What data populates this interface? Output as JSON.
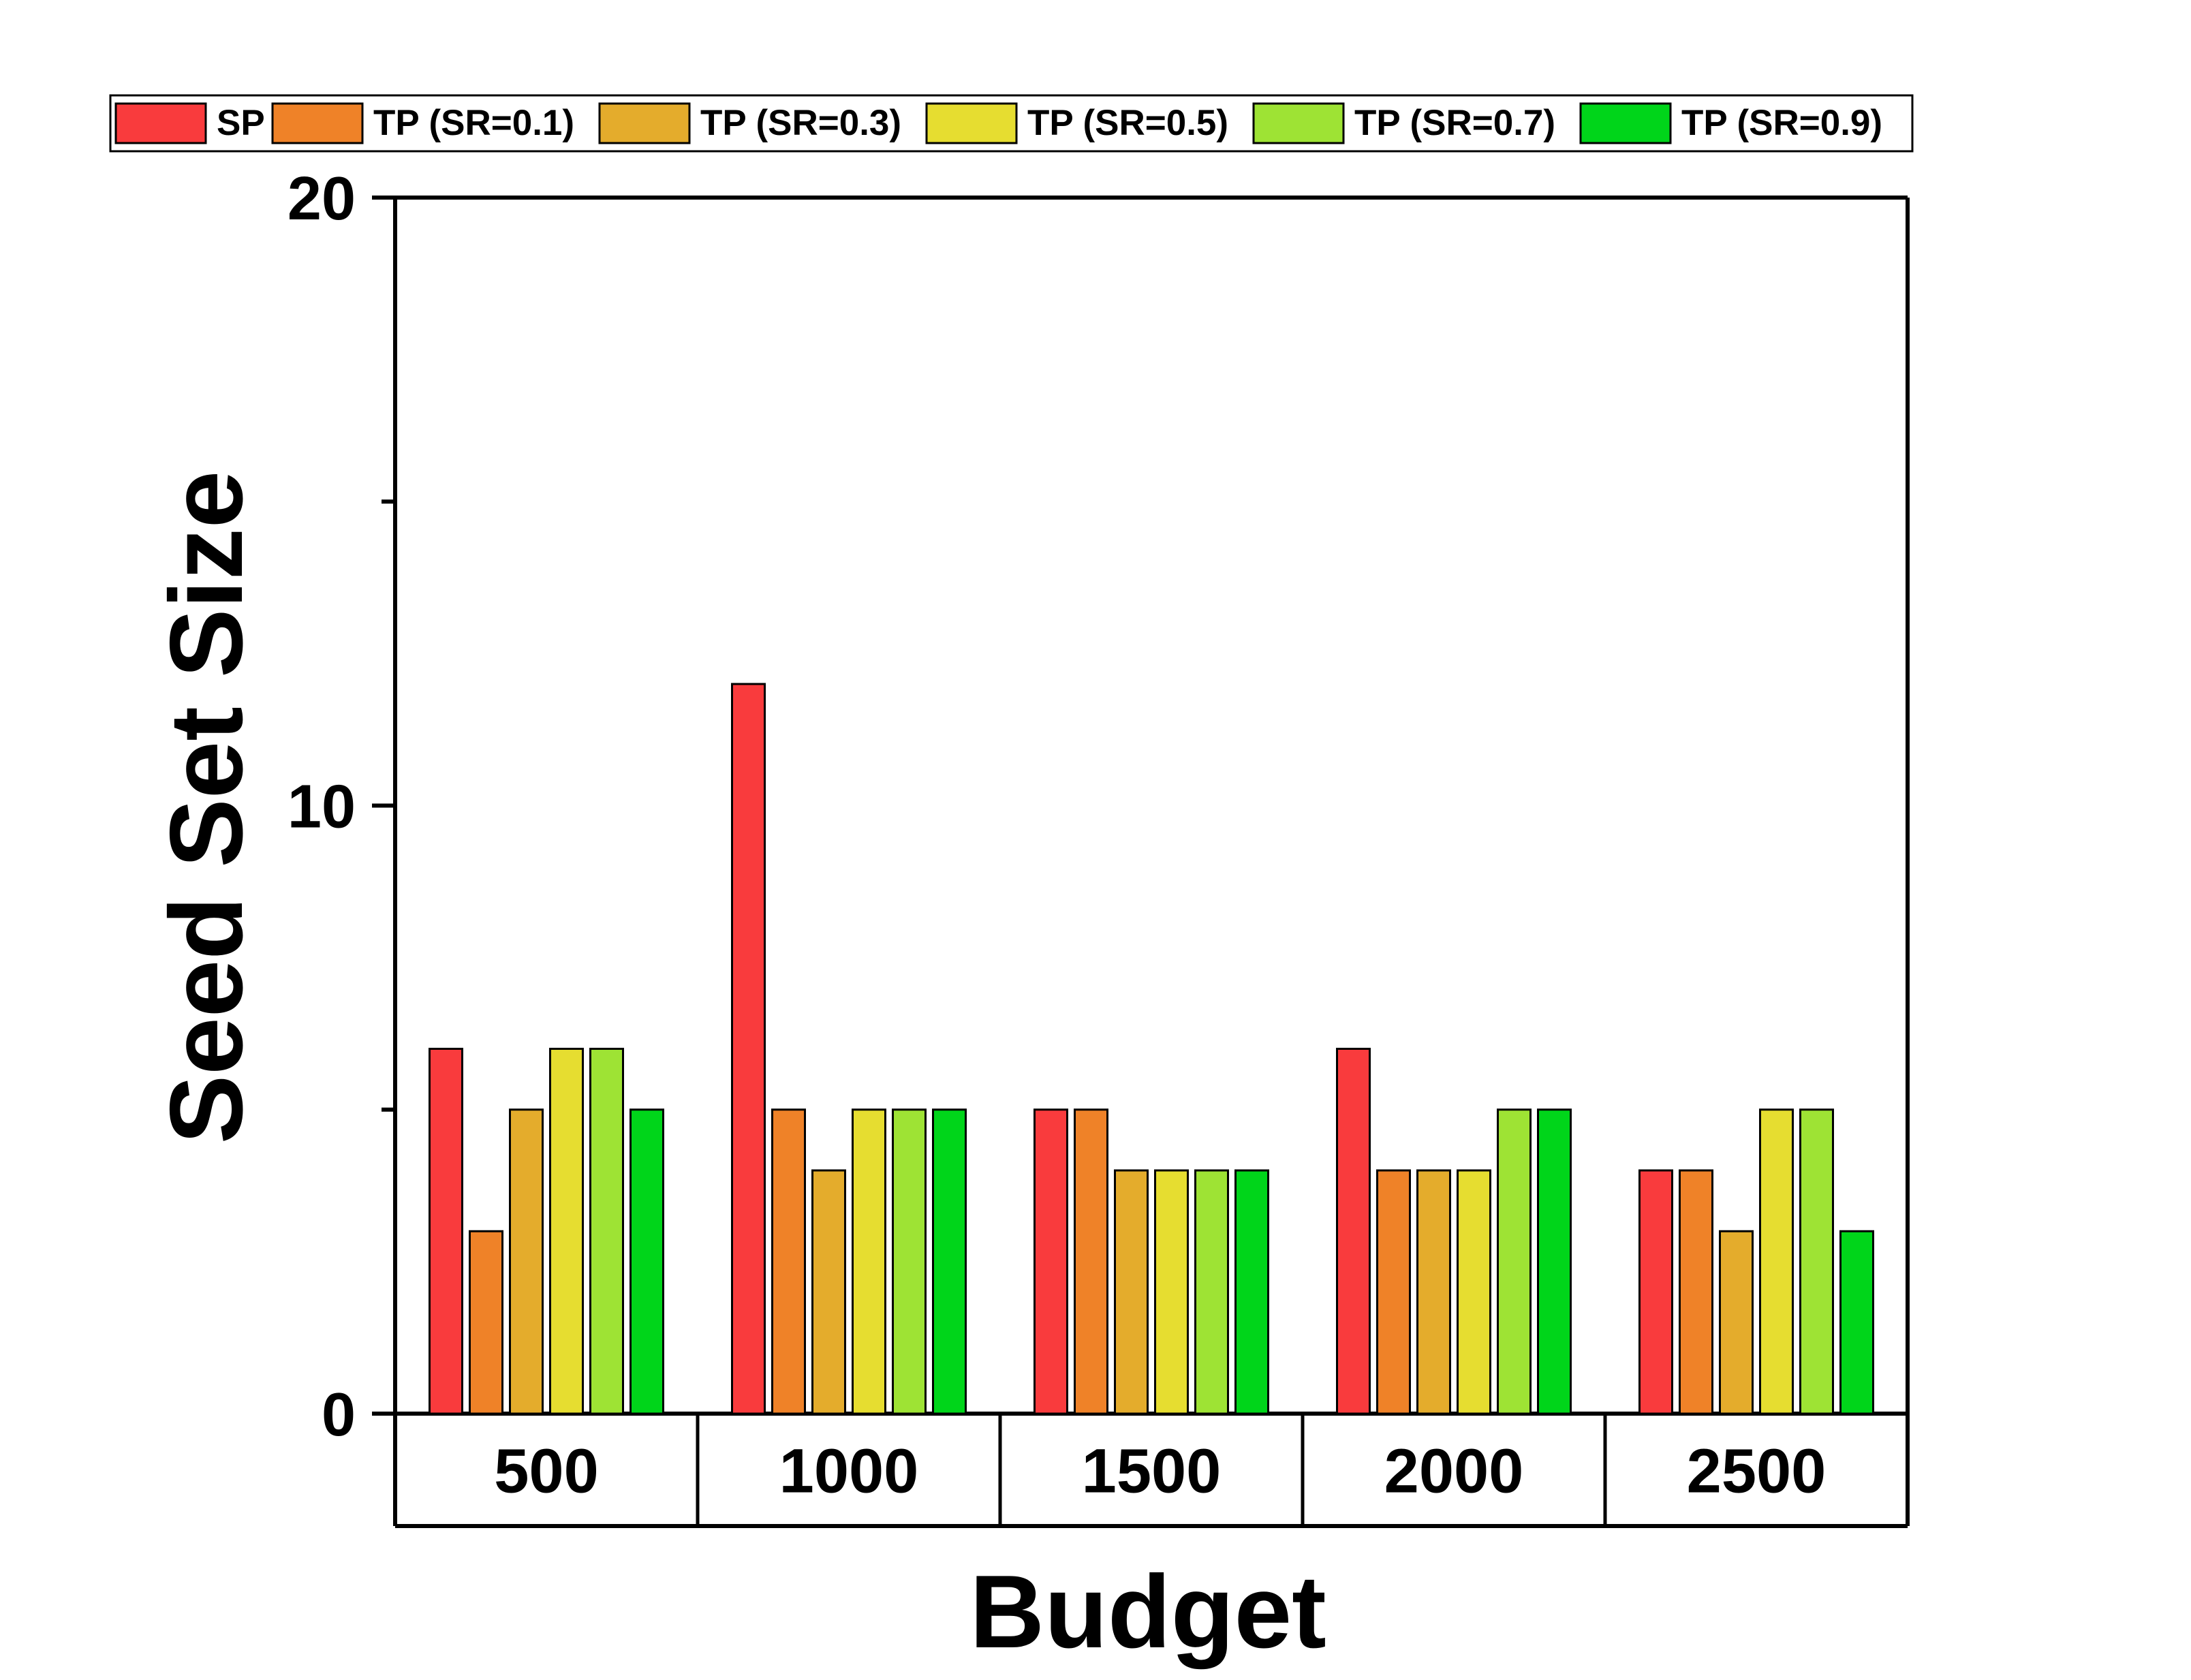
{
  "chart_data": {
    "type": "bar",
    "xlabel": "Budget",
    "ylabel": "Seed Set Size",
    "categories": [
      "500",
      "1000",
      "1500",
      "2000",
      "2500"
    ],
    "ylim": [
      0,
      20
    ],
    "yticks": [
      "0",
      "10",
      "20"
    ],
    "y_minor_ticks": [
      5,
      15
    ],
    "grid": false,
    "legend_position": "top",
    "series": [
      {
        "name": "SP",
        "color": "#f93b3d",
        "values": [
          6,
          12,
          5,
          6,
          4
        ]
      },
      {
        "name": "TP (SR=0.1)",
        "color": "#ef8228",
        "values": [
          3,
          5,
          5,
          4,
          4
        ]
      },
      {
        "name": "TP (SR=0.3)",
        "color": "#e4ac2c",
        "values": [
          5,
          4,
          4,
          4,
          3
        ]
      },
      {
        "name": "TP (SR=0.5)",
        "color": "#e6dd30",
        "values": [
          6,
          5,
          4,
          4,
          5
        ]
      },
      {
        "name": "TP (SR=0.7)",
        "color": "#9ee334",
        "values": [
          6,
          5,
          4,
          5,
          5
        ]
      },
      {
        "name": "TP (SR=0.9)",
        "color": "#00d51a",
        "values": [
          5,
          5,
          4,
          5,
          3
        ]
      }
    ]
  }
}
